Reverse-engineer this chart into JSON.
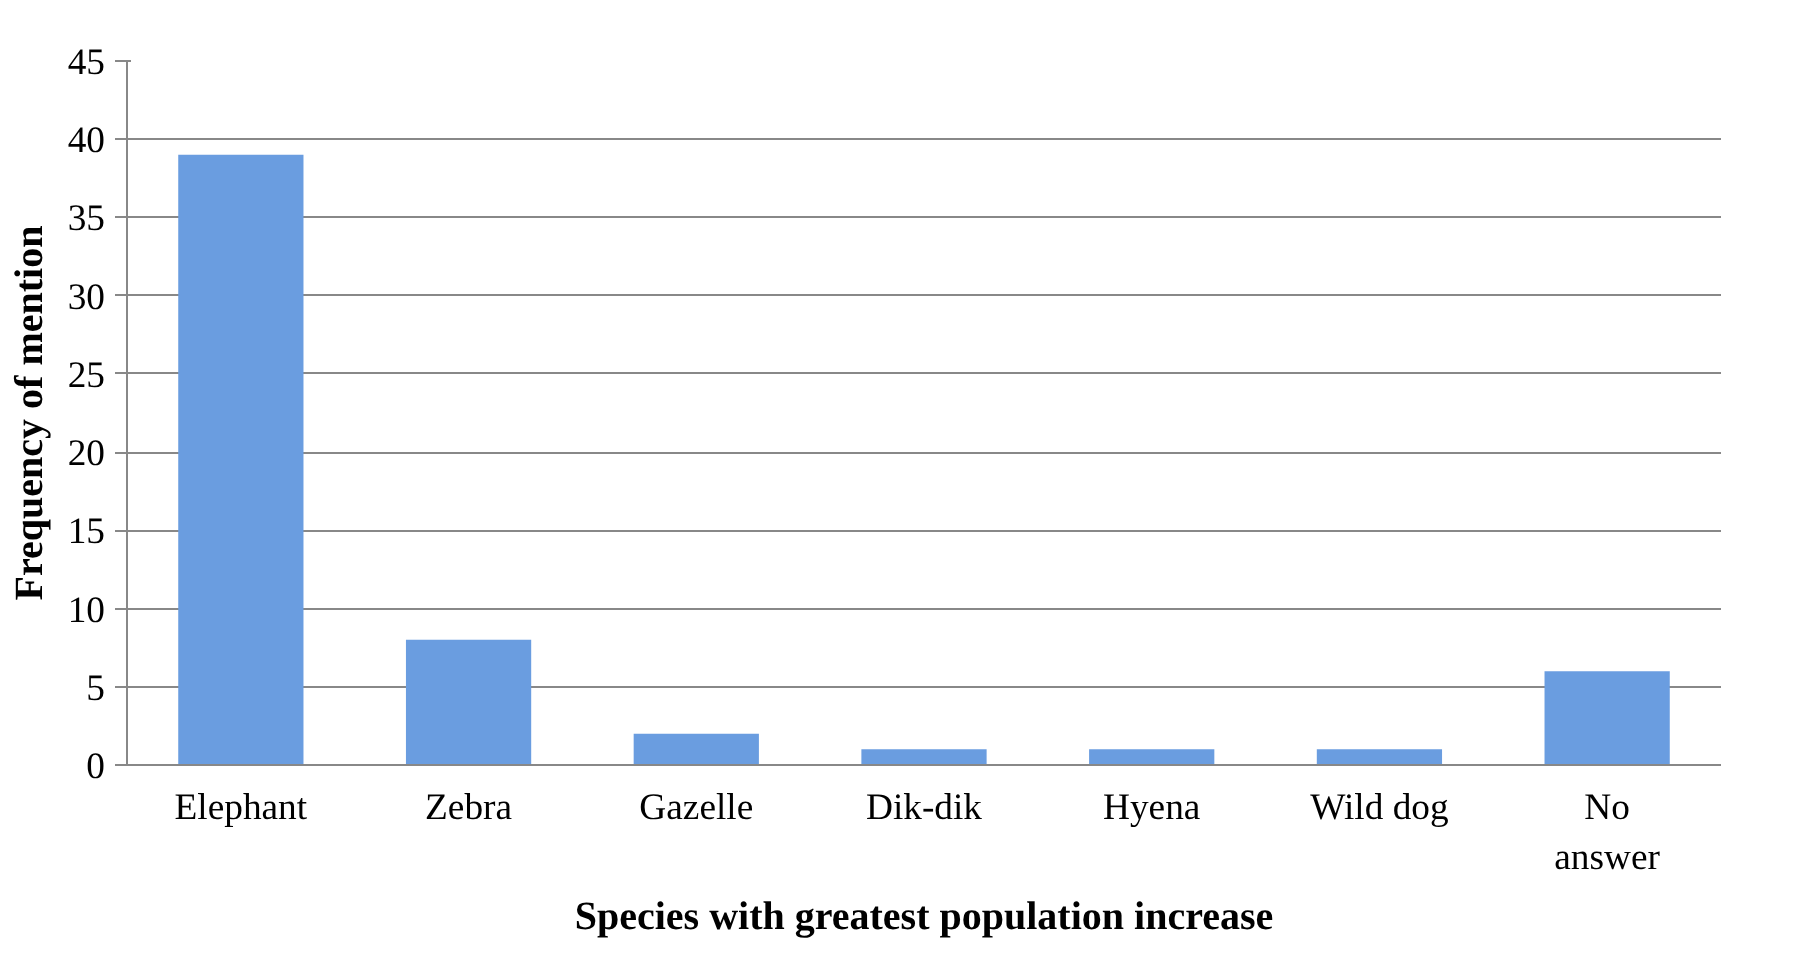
{
  "chart_data": {
    "type": "bar",
    "xlabel": "Species with greatest population increase",
    "ylabel": "Frequency of mention",
    "categories": [
      "Elephant",
      "Zebra",
      "Gazelle",
      "Dik-dik",
      "Hyena",
      "Wild dog",
      "No answer"
    ],
    "values": [
      39,
      8,
      2,
      1,
      1,
      1,
      6
    ],
    "color": "#6a9de0",
    "ylim": [
      0,
      45
    ],
    "yticks": [
      0,
      5,
      10,
      15,
      20,
      25,
      30,
      35,
      40,
      45
    ],
    "grid": "y"
  }
}
